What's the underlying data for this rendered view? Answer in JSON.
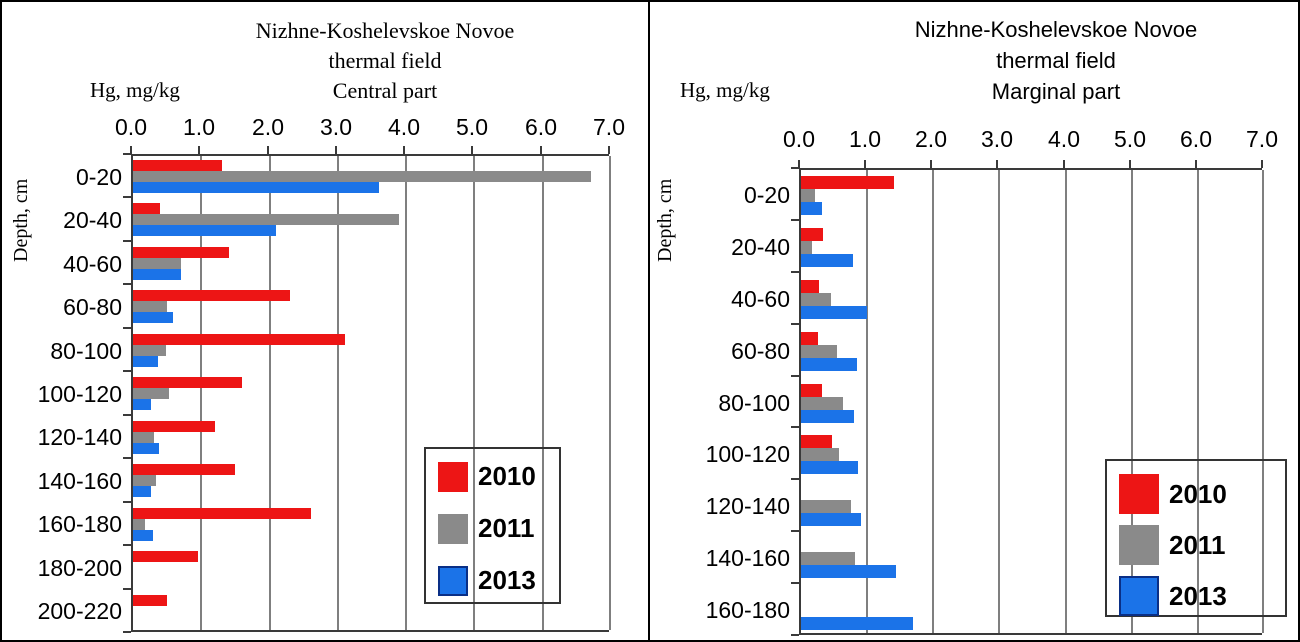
{
  "figure": {
    "background": "#ffffff",
    "border_color": "#000000",
    "gridline_color": "#7f7f7f",
    "axis_color": "#3a3a3a"
  },
  "chart_data": [
    {
      "type": "bar",
      "orientation": "horizontal",
      "title_lines": [
        "Nizhne-Koshelevskoe Novoe",
        "thermal field",
        "Central part"
      ],
      "xlabel": "Hg, mg/kg",
      "ylabel": "Depth, cm",
      "xlim": [
        0.0,
        7.0
      ],
      "xticks": [
        "0.0",
        "1.0",
        "2.0",
        "3.0",
        "4.0",
        "5.0",
        "6.0",
        "7.0"
      ],
      "grid": true,
      "legend_position": "inside-bottom-right",
      "categories": [
        "0-20",
        "20-40",
        "40-60",
        "60-80",
        "80-100",
        "100-120",
        "120-140",
        "140-160",
        "160-180",
        "180-200",
        "200-220"
      ],
      "series": [
        {
          "name": "2010",
          "color": "#ed1515",
          "values": [
            1.3,
            0.4,
            1.4,
            2.3,
            3.1,
            1.6,
            1.2,
            1.5,
            2.6,
            0.95,
            0.5
          ]
        },
        {
          "name": "2011",
          "color": "#8a8a8a",
          "values": [
            6.7,
            3.9,
            0.7,
            0.5,
            0.48,
            0.52,
            0.31,
            0.33,
            0.17,
            0,
            0
          ]
        },
        {
          "name": "2013",
          "color": "#1b73e8",
          "values": [
            3.6,
            2.1,
            0.7,
            0.58,
            0.36,
            0.26,
            0.38,
            0.27,
            0.29,
            0,
            0
          ]
        }
      ]
    },
    {
      "type": "bar",
      "orientation": "horizontal",
      "title_lines": [
        "Nizhne-Koshelevskoe Novoe",
        "thermal field",
        "Marginal part"
      ],
      "xlabel": "Hg, mg/kg",
      "ylabel": "Depth, cm",
      "xlim": [
        0.0,
        7.0
      ],
      "xticks": [
        "0.0",
        "1.0",
        "2.0",
        "3.0",
        "4.0",
        "5.0",
        "6.0",
        "7.0"
      ],
      "grid": true,
      "legend_position": "inside-bottom-right",
      "categories": [
        "0-20",
        "20-40",
        "40-60",
        "60-80",
        "80-100",
        "100-120",
        "120-140",
        "140-160",
        "160-180"
      ],
      "series": [
        {
          "name": "2010",
          "color": "#ed1515",
          "values": [
            1.4,
            0.33,
            0.27,
            0.26,
            0.31,
            0.47,
            0,
            0,
            0
          ]
        },
        {
          "name": "2011",
          "color": "#8a8a8a",
          "values": [
            0.21,
            0.16,
            0.46,
            0.54,
            0.64,
            0.58,
            0.75,
            0.82,
            0
          ]
        },
        {
          "name": "2013",
          "color": "#1b73e8",
          "values": [
            0.31,
            0.78,
            1.0,
            0.84,
            0.8,
            0.86,
            0.91,
            1.44,
            1.7
          ]
        }
      ]
    }
  ]
}
